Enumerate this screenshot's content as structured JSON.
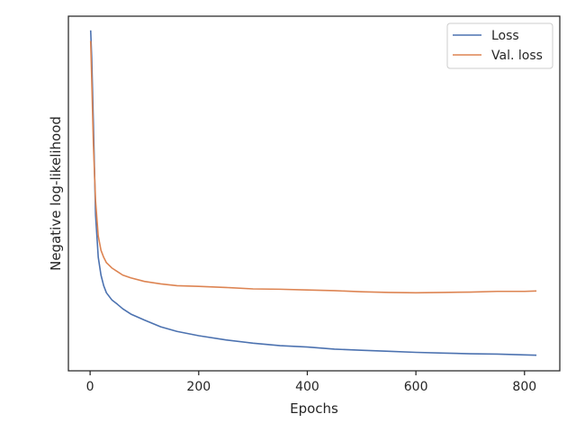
{
  "chart_data": {
    "type": "line",
    "title": "",
    "xlabel": "Epochs",
    "ylabel": "Negative log-likelihood",
    "xlim": [
      -40,
      865
    ],
    "ylim": [
      0,
      100
    ],
    "xticks": [
      0,
      200,
      400,
      600,
      800
    ],
    "yticks_labeled": false,
    "grid": false,
    "legend": "top-right",
    "series": [
      {
        "name": "Loss",
        "color": "#4c72b0",
        "x": [
          1,
          3,
          6,
          10,
          15,
          20,
          25,
          30,
          40,
          50,
          60,
          75,
          100,
          130,
          160,
          200,
          250,
          300,
          350,
          400,
          450,
          500,
          550,
          600,
          650,
          700,
          750,
          800,
          822
        ],
        "y": [
          96,
          88,
          70,
          44,
          32,
          27,
          24,
          22,
          20,
          18.8,
          17.5,
          16,
          14.3,
          12.4,
          11.1,
          9.9,
          8.7,
          7.8,
          7.1,
          6.7,
          6.1,
          5.8,
          5.5,
          5.2,
          5.0,
          4.8,
          4.7,
          4.5,
          4.4
        ]
      },
      {
        "name": "Val. loss",
        "color": "#dd8452",
        "x": [
          1,
          3,
          6,
          10,
          15,
          20,
          25,
          30,
          40,
          50,
          60,
          75,
          100,
          130,
          160,
          200,
          250,
          300,
          350,
          400,
          450,
          500,
          550,
          600,
          650,
          700,
          750,
          800,
          822
        ],
        "y": [
          93,
          82,
          64,
          48,
          38,
          34,
          32,
          30.5,
          29,
          28,
          27,
          26.2,
          25.2,
          24.5,
          24,
          23.8,
          23.5,
          23.1,
          23.0,
          22.8,
          22.6,
          22.3,
          22.1,
          22.0,
          22.1,
          22.2,
          22.4,
          22.4,
          22.5
        ]
      }
    ]
  }
}
